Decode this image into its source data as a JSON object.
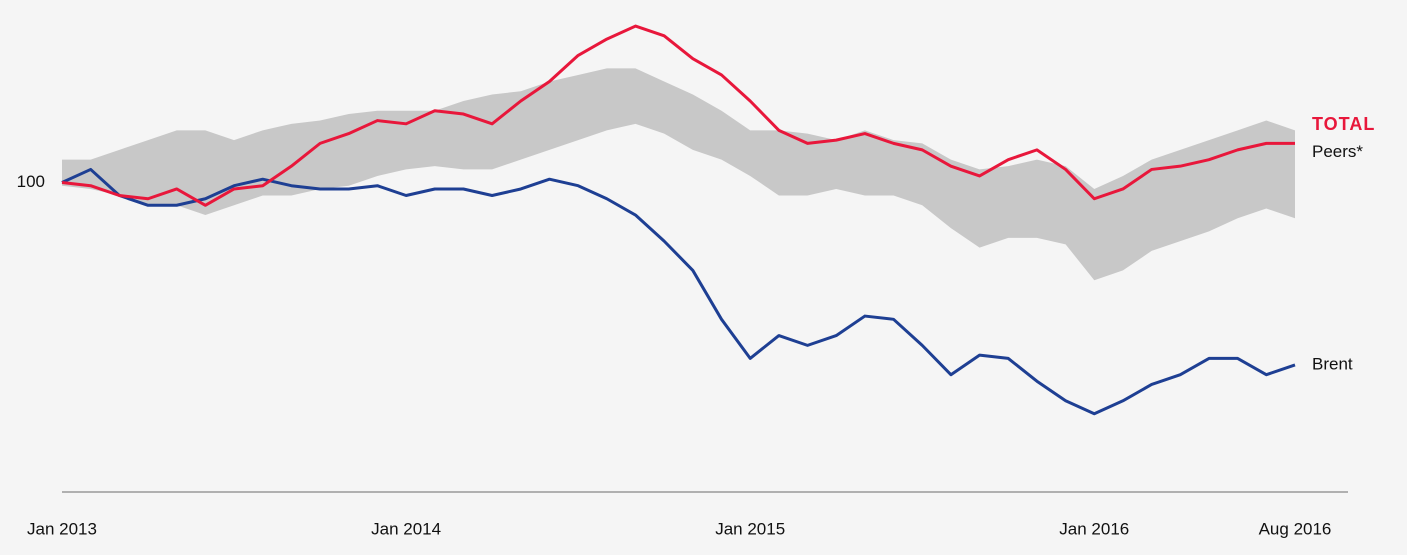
{
  "chart_data": {
    "type": "line",
    "x": [
      "2013-01",
      "2013-02",
      "2013-03",
      "2013-04",
      "2013-05",
      "2013-06",
      "2013-07",
      "2013-08",
      "2013-09",
      "2013-10",
      "2013-11",
      "2013-12",
      "2014-01",
      "2014-02",
      "2014-03",
      "2014-04",
      "2014-05",
      "2014-06",
      "2014-07",
      "2014-08",
      "2014-09",
      "2014-10",
      "2014-11",
      "2014-12",
      "2015-01",
      "2015-02",
      "2015-03",
      "2015-04",
      "2015-05",
      "2015-06",
      "2015-07",
      "2015-08",
      "2015-09",
      "2015-10",
      "2015-11",
      "2015-12",
      "2016-01",
      "2016-02",
      "2016-03",
      "2016-04",
      "2016-05",
      "2016-06",
      "2016-07",
      "2016-08"
    ],
    "xlim": [
      "2013-01",
      "2016-08"
    ],
    "xticks": [
      {
        "value": "2013-01",
        "label": "Jan 2013"
      },
      {
        "value": "2014-01",
        "label": "Jan 2014"
      },
      {
        "value": "2015-01",
        "label": "Jan 2015"
      },
      {
        "value": "2016-01",
        "label": "Jan 2016"
      },
      {
        "value": "2016-08",
        "label": "Aug 2016"
      }
    ],
    "ylim": [
      5,
      156
    ],
    "yticks": [
      100
    ],
    "band": {
      "name": "Peers*",
      "color": "#c8c8c8",
      "upper": [
        107,
        107,
        110,
        113,
        116,
        116,
        113,
        116,
        118,
        119,
        121,
        122,
        122,
        122,
        125,
        127,
        128,
        131,
        133,
        135,
        135,
        131,
        127,
        122,
        116,
        116,
        115,
        113,
        116,
        113,
        112,
        107,
        104,
        105,
        107,
        105,
        98,
        102,
        107,
        110,
        113,
        116,
        119,
        116
      ],
      "lower": [
        99,
        98,
        96,
        93,
        93,
        90,
        93,
        96,
        96,
        98,
        99,
        102,
        104,
        105,
        104,
        104,
        107,
        110,
        113,
        116,
        118,
        115,
        110,
        107,
        102,
        96,
        96,
        98,
        96,
        96,
        93,
        86,
        80,
        83,
        83,
        81,
        70,
        73,
        79,
        82,
        85,
        89,
        92,
        89
      ]
    },
    "series": [
      {
        "name": "Brent",
        "color": "#1e3f93",
        "values": [
          100,
          104,
          96,
          93,
          93,
          95,
          99,
          101,
          99,
          98,
          98,
          99,
          96,
          98,
          98,
          96,
          98,
          101,
          99,
          95,
          90,
          82,
          73,
          58,
          46,
          53,
          50,
          53,
          59,
          58,
          50,
          41,
          47,
          46,
          39,
          33,
          29,
          33,
          38,
          41,
          46,
          46,
          41,
          44
        ]
      },
      {
        "name": "TOTAL",
        "color": "#e8173b",
        "values": [
          100,
          99,
          96,
          95,
          98,
          93,
          98,
          99,
          105,
          112,
          115,
          119,
          118,
          122,
          121,
          118,
          125,
          131,
          139,
          144,
          148,
          145,
          138,
          133,
          125,
          116,
          112,
          113,
          115,
          112,
          110,
          105,
          102,
          107,
          110,
          104,
          95,
          98,
          104,
          105,
          107,
          110,
          112,
          112
        ]
      }
    ]
  }
}
